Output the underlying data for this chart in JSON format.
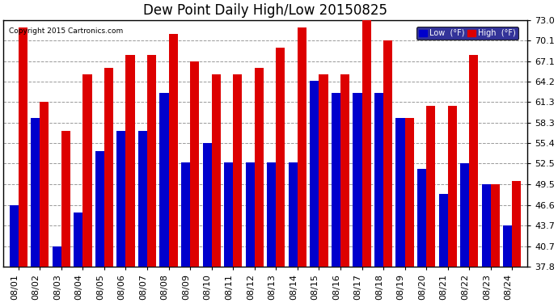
{
  "title": "Dew Point Daily High/Low 20150825",
  "copyright": "Copyright 2015 Cartronics.com",
  "dates": [
    "08/01",
    "08/02",
    "08/03",
    "08/04",
    "08/05",
    "08/06",
    "08/07",
    "08/08",
    "08/09",
    "08/10",
    "08/11",
    "08/12",
    "08/13",
    "08/14",
    "08/15",
    "08/16",
    "08/17",
    "08/18",
    "08/19",
    "08/20",
    "08/21",
    "08/22",
    "08/23",
    "08/24"
  ],
  "high": [
    72.0,
    61.3,
    57.2,
    65.3,
    66.2,
    68.0,
    68.0,
    71.1,
    67.1,
    65.3,
    65.3,
    66.2,
    69.1,
    72.0,
    65.3,
    65.3,
    73.0,
    70.1,
    59.0,
    60.8,
    60.8,
    68.0,
    49.5,
    50.0
  ],
  "low": [
    46.6,
    59.0,
    40.7,
    45.5,
    54.3,
    57.2,
    57.2,
    62.6,
    52.7,
    55.4,
    52.7,
    52.7,
    52.7,
    52.7,
    64.4,
    62.6,
    62.6,
    62.6,
    59.0,
    51.8,
    48.2,
    52.5,
    49.5,
    43.7
  ],
  "ylim_min": 37.8,
  "ylim_max": 73.0,
  "yticks": [
    37.8,
    40.7,
    43.7,
    46.6,
    49.5,
    52.5,
    55.4,
    58.3,
    61.3,
    64.2,
    67.1,
    70.1,
    73.0
  ],
  "low_color": "#0000cc",
  "high_color": "#dd0000",
  "bg_color": "#ffffff",
  "grid_color": "#999999",
  "title_fontsize": 12,
  "tick_fontsize": 8,
  "bar_width": 0.42
}
